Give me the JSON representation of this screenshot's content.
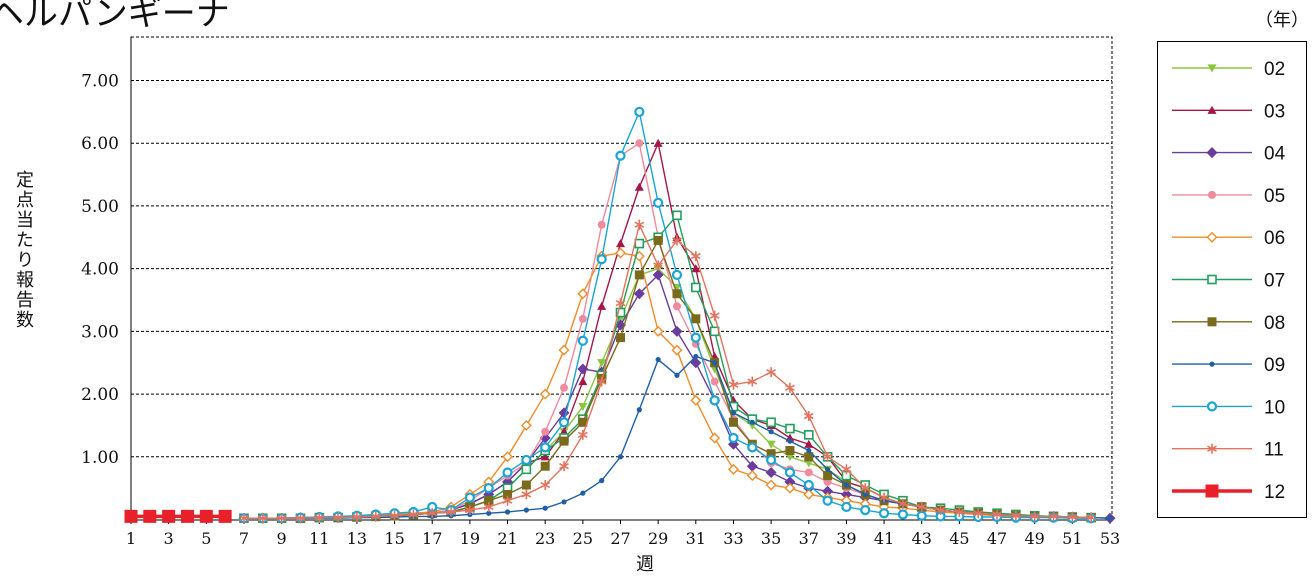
{
  "chart_data": {
    "type": "line",
    "title": "ヘルパンギーナ",
    "unit_label": "（年）",
    "xlabel": "週",
    "ylabel": "定点当たり報告数",
    "x": [
      1,
      2,
      3,
      4,
      5,
      6,
      7,
      8,
      9,
      10,
      11,
      12,
      13,
      14,
      15,
      16,
      17,
      18,
      19,
      20,
      21,
      22,
      23,
      24,
      25,
      26,
      27,
      28,
      29,
      30,
      31,
      32,
      33,
      34,
      35,
      36,
      37,
      38,
      39,
      40,
      41,
      42,
      43,
      44,
      45,
      46,
      47,
      48,
      49,
      50,
      51,
      52,
      53
    ],
    "x_tick_labels": [
      "1",
      "3",
      "5",
      "7",
      "9",
      "11",
      "13",
      "15",
      "17",
      "19",
      "21",
      "23",
      "25",
      "27",
      "29",
      "31",
      "33",
      "35",
      "37",
      "39",
      "41",
      "43",
      "45",
      "47",
      "49",
      "51",
      "53"
    ],
    "y_tick_labels": [
      "1.00",
      "2.00",
      "3.00",
      "4.00",
      "5.00",
      "6.00",
      "7.00"
    ],
    "ylim": [
      0,
      7
    ],
    "grid": "horizontal dashed",
    "legend_position": "right",
    "series": [
      {
        "name": "02",
        "color": "#8cc63f",
        "marker": "triangle-down",
        "values": [
          null,
          null,
          null,
          null,
          null,
          null,
          0.02,
          0.02,
          0.02,
          0.02,
          0.03,
          0.03,
          0.04,
          0.05,
          0.06,
          0.08,
          0.1,
          0.12,
          0.2,
          0.3,
          0.5,
          0.8,
          1.1,
          1.4,
          1.8,
          2.5,
          3.2,
          3.9,
          4.0,
          3.7,
          3.2,
          2.4,
          1.7,
          1.5,
          1.2,
          1.0,
          0.9,
          0.8,
          0.6,
          0.5,
          0.35,
          0.25,
          0.2,
          0.15,
          0.12,
          0.1,
          0.08,
          0.06,
          0.05,
          0.05,
          0.04,
          0.03,
          null
        ]
      },
      {
        "name": "03",
        "color": "#a6164a",
        "marker": "triangle",
        "values": [
          null,
          null,
          null,
          null,
          null,
          null,
          0.02,
          0.02,
          0.02,
          0.03,
          0.03,
          0.03,
          0.04,
          0.05,
          0.06,
          0.08,
          0.1,
          0.15,
          0.25,
          0.4,
          0.6,
          0.9,
          1.0,
          1.4,
          2.2,
          3.4,
          4.4,
          5.3,
          6.0,
          4.5,
          4.0,
          2.6,
          1.9,
          1.6,
          1.5,
          1.3,
          1.2,
          1.0,
          0.6,
          0.5,
          0.35,
          0.25,
          0.2,
          0.15,
          0.12,
          0.1,
          0.08,
          0.06,
          0.05,
          0.05,
          0.04,
          0.03,
          null
        ]
      },
      {
        "name": "04",
        "color": "#6a3c9c",
        "marker": "diamond",
        "values": [
          null,
          null,
          null,
          null,
          null,
          null,
          0.02,
          0.02,
          0.02,
          0.02,
          0.03,
          0.03,
          0.04,
          0.05,
          0.06,
          0.08,
          0.1,
          0.15,
          0.25,
          0.4,
          0.6,
          0.9,
          1.3,
          1.7,
          2.4,
          2.35,
          3.1,
          3.6,
          3.9,
          3.0,
          2.5,
          1.9,
          1.2,
          0.85,
          0.75,
          0.6,
          0.5,
          0.45,
          0.4,
          0.35,
          0.3,
          0.25,
          0.2,
          0.15,
          0.12,
          0.1,
          0.08,
          0.06,
          0.05,
          0.05,
          0.04,
          0.03,
          0.02
        ]
      },
      {
        "name": "05",
        "color": "#ef8b9f",
        "marker": "circle",
        "values": [
          null,
          null,
          null,
          null,
          null,
          null,
          0.02,
          0.02,
          0.02,
          0.02,
          0.03,
          0.03,
          0.04,
          0.05,
          0.06,
          0.08,
          0.1,
          0.15,
          0.3,
          0.5,
          0.7,
          0.9,
          1.4,
          2.1,
          3.2,
          4.7,
          5.8,
          6.0,
          4.5,
          3.4,
          2.8,
          2.2,
          1.6,
          1.2,
          0.9,
          0.8,
          0.75,
          0.6,
          0.5,
          0.4,
          0.3,
          0.25,
          0.2,
          0.15,
          0.12,
          0.1,
          0.08,
          0.06,
          0.05,
          0.05,
          0.04,
          0.03,
          null
        ]
      },
      {
        "name": "06",
        "color": "#f08c2a",
        "marker": "diamond-open",
        "values": [
          null,
          null,
          null,
          null,
          null,
          null,
          0.02,
          0.02,
          0.02,
          0.03,
          0.03,
          0.04,
          0.05,
          0.06,
          0.08,
          0.1,
          0.12,
          0.2,
          0.4,
          0.6,
          1.0,
          1.5,
          2.0,
          2.7,
          3.6,
          4.2,
          4.25,
          4.2,
          3.0,
          2.7,
          1.9,
          1.3,
          0.8,
          0.7,
          0.55,
          0.5,
          0.4,
          0.35,
          0.3,
          0.25,
          0.2,
          0.18,
          0.15,
          0.12,
          0.1,
          0.08,
          0.06,
          0.05,
          0.05,
          0.04,
          0.03,
          0.02,
          null
        ]
      },
      {
        "name": "07",
        "color": "#1fa05a",
        "marker": "square-open",
        "values": [
          null,
          null,
          null,
          null,
          null,
          null,
          0.02,
          0.02,
          0.02,
          0.02,
          0.03,
          0.03,
          0.04,
          0.05,
          0.06,
          0.08,
          0.1,
          0.12,
          0.2,
          0.3,
          0.5,
          0.8,
          1.1,
          1.3,
          1.6,
          2.3,
          3.3,
          4.4,
          4.5,
          4.85,
          3.7,
          3.0,
          1.8,
          1.6,
          1.55,
          1.45,
          1.35,
          1.0,
          0.7,
          0.55,
          0.4,
          0.3,
          0.2,
          0.18,
          0.15,
          0.12,
          0.1,
          0.08,
          0.06,
          0.05,
          0.04,
          0.03,
          null
        ]
      },
      {
        "name": "08",
        "color": "#7a6a1c",
        "marker": "square",
        "values": [
          null,
          null,
          null,
          null,
          null,
          null,
          0.02,
          0.02,
          0.02,
          0.02,
          0.03,
          0.03,
          0.04,
          0.05,
          0.06,
          0.08,
          0.1,
          0.12,
          0.2,
          0.3,
          0.4,
          0.55,
          0.85,
          1.25,
          1.55,
          2.25,
          2.9,
          3.9,
          4.45,
          3.6,
          3.2,
          2.5,
          1.55,
          1.2,
          1.05,
          1.1,
          1.0,
          0.7,
          0.55,
          0.4,
          0.3,
          0.25,
          0.2,
          0.15,
          0.12,
          0.1,
          0.08,
          0.06,
          0.05,
          0.05,
          0.04,
          0.03,
          null
        ]
      },
      {
        "name": "09",
        "color": "#1f5fa8",
        "marker": "dot",
        "values": [
          null,
          null,
          null,
          null,
          null,
          null,
          0.02,
          0.02,
          0.02,
          0.02,
          0.02,
          0.02,
          0.03,
          0.03,
          0.04,
          0.05,
          0.05,
          0.06,
          0.08,
          0.1,
          0.12,
          0.15,
          0.18,
          0.28,
          0.42,
          0.62,
          1.0,
          1.75,
          2.55,
          2.3,
          2.6,
          2.5,
          1.7,
          1.55,
          1.4,
          1.25,
          1.1,
          0.8,
          0.55,
          0.4,
          0.3,
          0.25,
          0.2,
          0.15,
          0.12,
          0.1,
          0.08,
          0.06,
          0.05,
          0.05,
          0.04,
          0.03,
          0.02
        ]
      },
      {
        "name": "10",
        "color": "#1aa5d6",
        "marker": "circle-open",
        "values": [
          null,
          null,
          null,
          null,
          null,
          null,
          0.02,
          0.02,
          0.02,
          0.03,
          0.04,
          0.05,
          0.06,
          0.08,
          0.1,
          0.12,
          0.2,
          0.15,
          0.35,
          0.5,
          0.75,
          0.95,
          1.15,
          1.55,
          2.85,
          4.15,
          5.8,
          6.5,
          5.05,
          3.9,
          2.9,
          1.9,
          1.3,
          1.15,
          0.95,
          0.75,
          0.55,
          0.3,
          0.2,
          0.15,
          0.1,
          0.08,
          0.06,
          0.05,
          0.05,
          0.04,
          0.04,
          0.03,
          0.03,
          0.03,
          0.02,
          0.02,
          null
        ]
      },
      {
        "name": "11",
        "color": "#e3735e",
        "marker": "asterisk",
        "values": [
          null,
          null,
          null,
          null,
          null,
          null,
          0.02,
          0.02,
          0.02,
          0.02,
          0.03,
          0.03,
          0.04,
          0.05,
          0.06,
          0.08,
          0.1,
          0.12,
          0.15,
          0.2,
          0.3,
          0.4,
          0.55,
          0.85,
          1.35,
          2.2,
          3.45,
          4.7,
          4.05,
          4.45,
          4.2,
          3.25,
          2.15,
          2.2,
          2.35,
          2.1,
          1.65,
          1.0,
          0.8,
          0.5,
          0.35,
          0.25,
          0.2,
          0.15,
          0.12,
          0.1,
          0.08,
          0.06,
          0.05,
          0.05,
          0.04,
          0.03,
          null
        ]
      },
      {
        "name": "12",
        "color": "#e8202a",
        "marker": "square-large",
        "values": [
          0.05,
          0.05,
          0.05,
          0.05,
          0.05,
          0.05,
          null,
          null,
          null,
          null,
          null,
          null,
          null,
          null,
          null,
          null,
          null,
          null,
          null,
          null,
          null,
          null,
          null,
          null,
          null,
          null,
          null,
          null,
          null,
          null,
          null,
          null,
          null,
          null,
          null,
          null,
          null,
          null,
          null,
          null,
          null,
          null,
          null,
          null,
          null,
          null,
          null,
          null,
          null,
          null,
          null,
          null,
          null
        ]
      }
    ]
  }
}
